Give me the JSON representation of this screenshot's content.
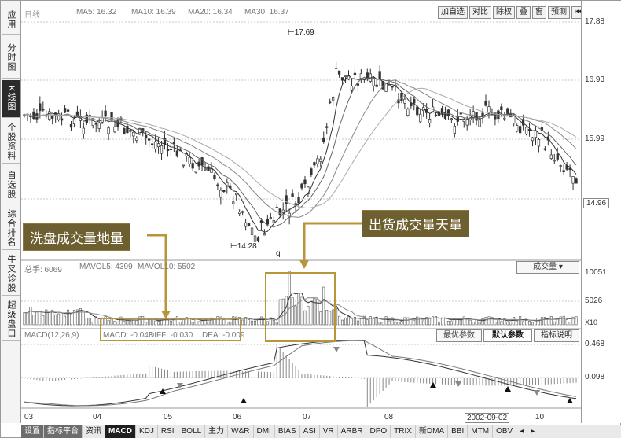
{
  "sidebar": {
    "items": [
      {
        "label": "应用"
      },
      {
        "label": "分时图"
      },
      {
        "label": "K线图"
      },
      {
        "label": "个股资料"
      },
      {
        "label": "自选股"
      },
      {
        "label": "综合排名"
      },
      {
        "label": "牛叉诊股"
      },
      {
        "label": "超级盘口"
      }
    ]
  },
  "header": {
    "stock_label": "日线",
    "ma5": "MA5: 16.32",
    "ma10": "MA10: 16.39",
    "ma20": "MA20: 16.34",
    "ma30": "MA30: 16.37"
  },
  "toolbar": {
    "buttons": [
      "加自选",
      "对比",
      "除权",
      "叠",
      "窗",
      "预测"
    ]
  },
  "price_axis": {
    "labels": [
      "17.88",
      "16.93",
      "15.99",
      "14.96"
    ]
  },
  "candles": {
    "high_label": "17.69",
    "low_label": "14.28",
    "q_marker": "q"
  },
  "volume": {
    "header": "总手: 6069",
    "mavol5": "MAVOL5: 4399",
    "mavol10": "MAVOL10: 5502",
    "indicator_select": "成交量",
    "axis": [
      "10051",
      "5026",
      "X10"
    ]
  },
  "macd": {
    "header": "MACD(12,26,9)",
    "macd": "MACD: -0.043",
    "diff": "DIFF: -0.030",
    "dea": "DEA: -0.009",
    "axis": [
      "0.468",
      "0.098"
    ],
    "buttons": [
      "最优参数",
      "默认参数",
      "指标说明"
    ]
  },
  "dates": [
    "03",
    "04",
    "05",
    "06",
    "07",
    "08",
    "2002-09-02",
    "10"
  ],
  "tabs": [
    "设置",
    "指标平台",
    "资讯",
    "MACD",
    "KDJ",
    "RSI",
    "BOLL",
    "主力",
    "W&R",
    "DMI",
    "BIAS",
    "ASI",
    "VR",
    "ARBR",
    "DPO",
    "TRIX",
    "新DMA",
    "BBI",
    "MTM",
    "OBV"
  ],
  "annotations": {
    "left": "洗盘成交量地量",
    "right": "出货成交量天量"
  },
  "colors": {
    "frame": "#b9953a",
    "callout": "#6d5f2f",
    "active_tab": "#1f1f1f"
  }
}
